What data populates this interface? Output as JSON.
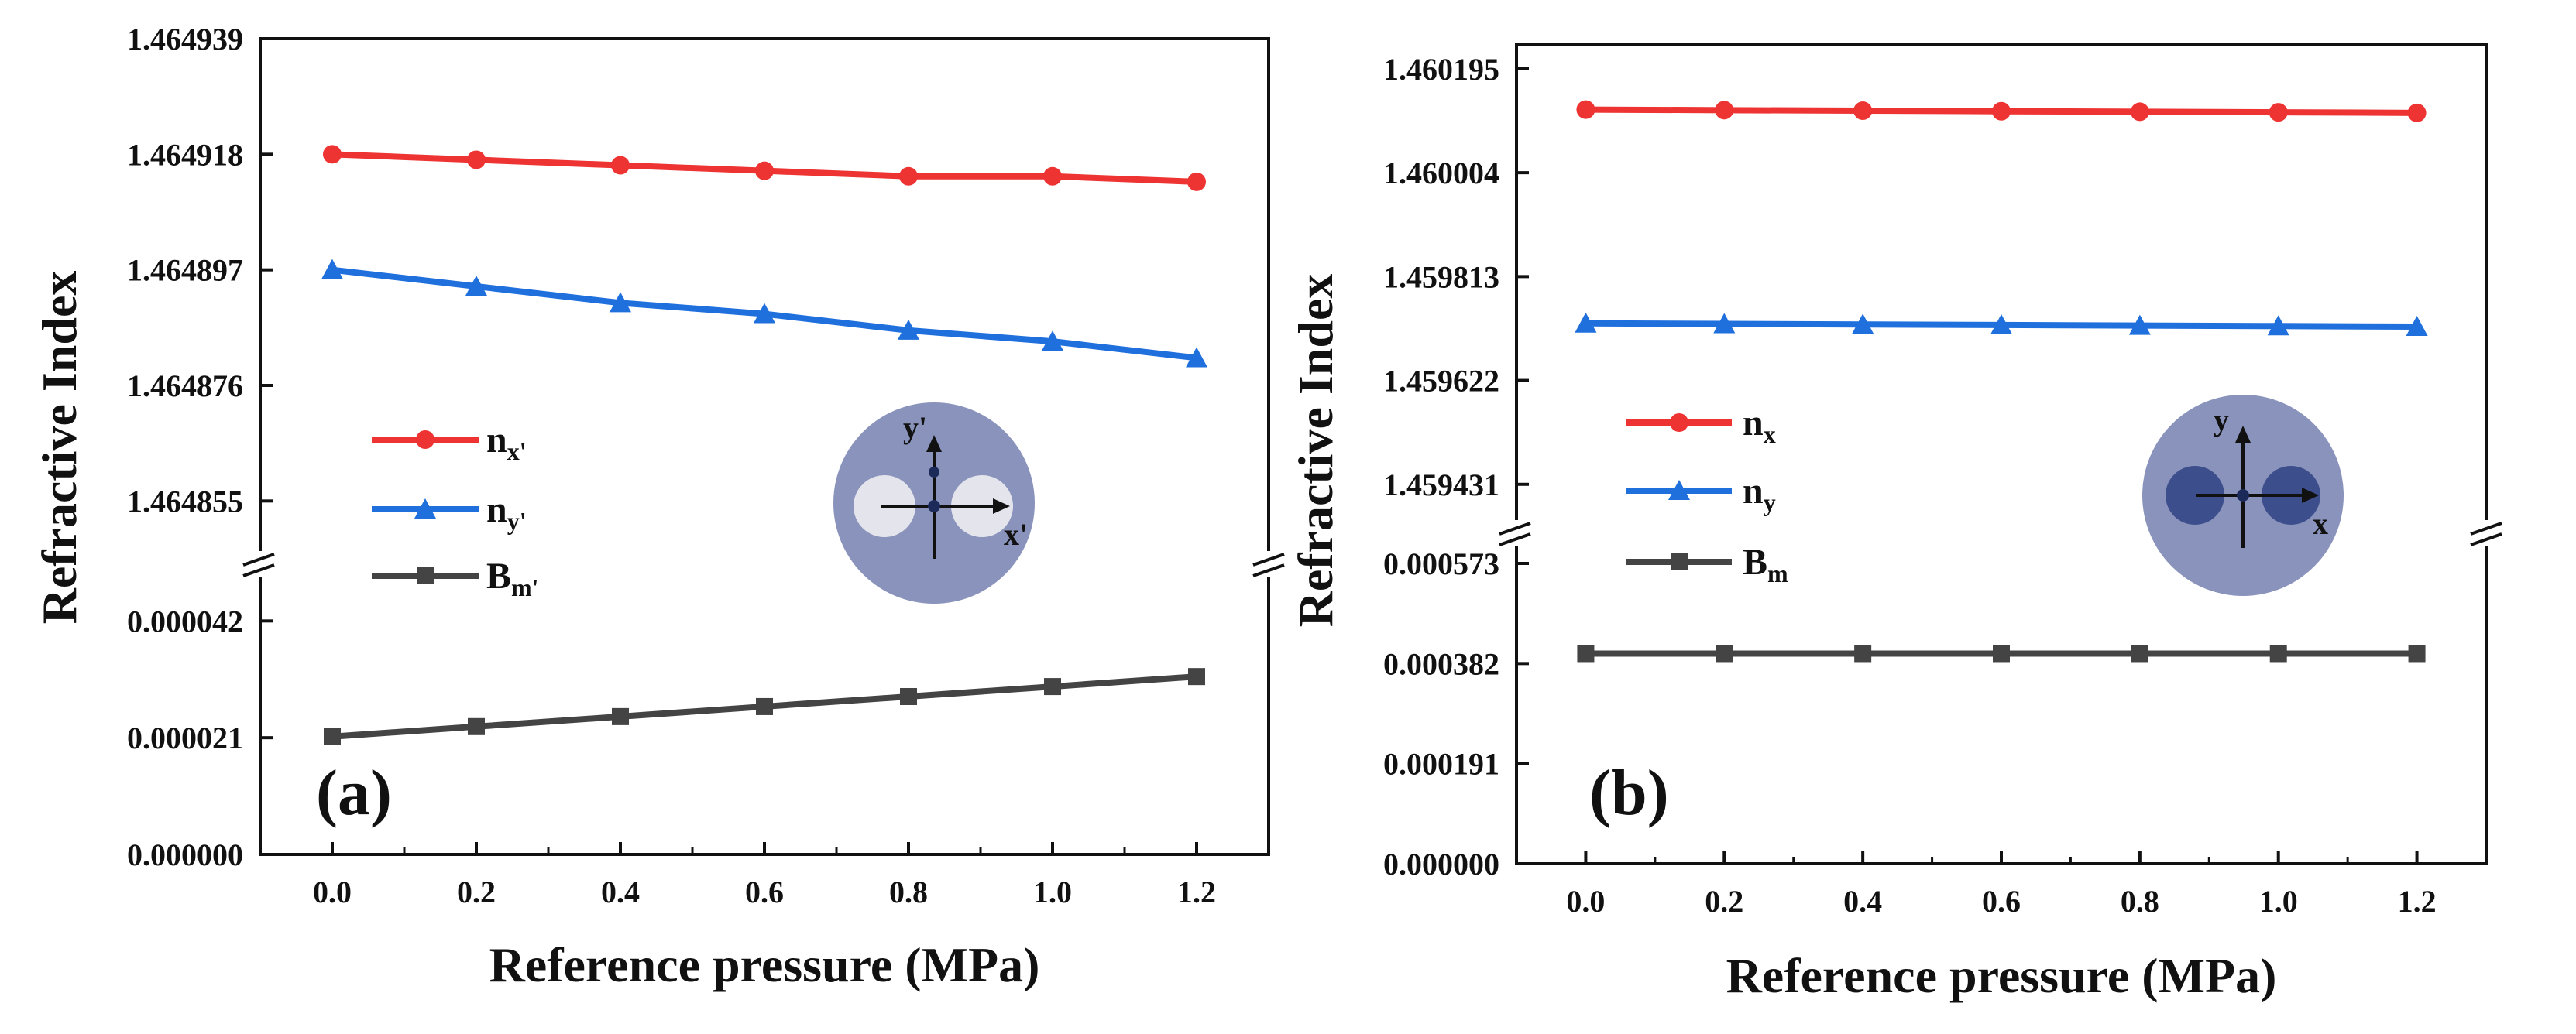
{
  "chart_data": [
    {
      "type": "line",
      "panel_label": "(a)",
      "xlabel": "Reference pressure (MPa)",
      "ylabel": "Refractive Index",
      "x": [
        0.0,
        0.2,
        0.4,
        0.6,
        0.8,
        1.0,
        1.2
      ],
      "x_tick_labels": [
        "0.0",
        "0.2",
        "0.4",
        "0.6",
        "0.8",
        "1.0",
        "1.2"
      ],
      "xlim": [
        -0.1,
        1.3
      ],
      "y_axis_broken": true,
      "upper": {
        "ylim": [
          1.464849,
          1.464939
        ],
        "tick_labels": [
          "1.464939",
          "1.464918",
          "1.464897",
          "1.464876",
          "1.464855"
        ],
        "tick_values": [
          1.464939,
          1.464918,
          1.464897,
          1.464876,
          1.464855
        ]
      },
      "lower": {
        "ylim": [
          0.0,
          4.65e-05
        ],
        "tick_labels": [
          "0.000042",
          "0.000021",
          "0.000000"
        ],
        "tick_values": [
          4.2e-05,
          2.1e-05,
          0.0
        ]
      },
      "series": [
        {
          "name": "n",
          "subscript": "x'",
          "segment": "upper",
          "marker": "circle",
          "color": "#ee3333",
          "values": [
            1.464918,
            1.464917,
            1.464916,
            1.464915,
            1.464914,
            1.464914,
            1.464913
          ]
        },
        {
          "name": "n",
          "subscript": "y'",
          "segment": "upper",
          "marker": "triangle",
          "color": "#1f6fdd",
          "values": [
            1.464897,
            1.464894,
            1.464891,
            1.464889,
            1.464886,
            1.464884,
            1.464881
          ]
        },
        {
          "name": "B",
          "subscript": "m'",
          "segment": "lower",
          "marker": "square",
          "color": "#444444",
          "values": [
            2.12e-05,
            2.3e-05,
            2.48e-05,
            2.66e-05,
            2.84e-05,
            3.02e-05,
            3.2e-05
          ]
        }
      ],
      "inset": {
        "x_label": "x'",
        "y_label": "y'",
        "disk_color": "#8a93bb",
        "core_color": "#e4e5ec"
      }
    },
    {
      "type": "line",
      "panel_label": "(b)",
      "xlabel": "Reference pressure (MPa)",
      "ylabel": "Refractive Index",
      "x": [
        0.0,
        0.2,
        0.4,
        0.6,
        0.8,
        1.0,
        1.2
      ],
      "x_tick_labels": [
        "0.0",
        "0.2",
        "0.4",
        "0.6",
        "0.8",
        "1.0",
        "1.2"
      ],
      "xlim": [
        -0.1,
        1.3
      ],
      "y_axis_broken": true,
      "upper": {
        "ylim": [
          1.459388,
          1.460239
        ],
        "tick_labels": [
          "1.460195",
          "1.460004",
          "1.459813",
          "1.459622",
          "1.459431"
        ],
        "tick_values": [
          1.460195,
          1.460004,
          1.459813,
          1.459622,
          1.459431
        ]
      },
      "lower": {
        "ylim": [
          0.0,
          0.000573
        ],
        "tick_labels": [
          "0.000573",
          "0.000382",
          "0.000191",
          "0.000000"
        ],
        "tick_values": [
          0.000573,
          0.000382,
          0.000191,
          0.0
        ]
      },
      "series": [
        {
          "name": "n",
          "subscript": "x",
          "segment": "upper",
          "marker": "circle",
          "color": "#ee3333",
          "values": [
            1.46012,
            1.460119,
            1.460118,
            1.460117,
            1.460116,
            1.460115,
            1.460114
          ]
        },
        {
          "name": "n",
          "subscript": "y",
          "segment": "upper",
          "marker": "triangle",
          "color": "#1f6fdd",
          "values": [
            1.459727,
            1.459726,
            1.459725,
            1.459724,
            1.459723,
            1.459722,
            1.459721
          ]
        },
        {
          "name": "B",
          "subscript": "m",
          "segment": "lower",
          "marker": "square",
          "color": "#444444",
          "values": [
            0.000401,
            0.000401,
            0.000401,
            0.000401,
            0.000401,
            0.000401,
            0.000401
          ]
        }
      ],
      "inset": {
        "x_label": "x",
        "y_label": "y",
        "disk_color": "#8a93bb",
        "core_color": "#3d4e8c"
      }
    }
  ]
}
